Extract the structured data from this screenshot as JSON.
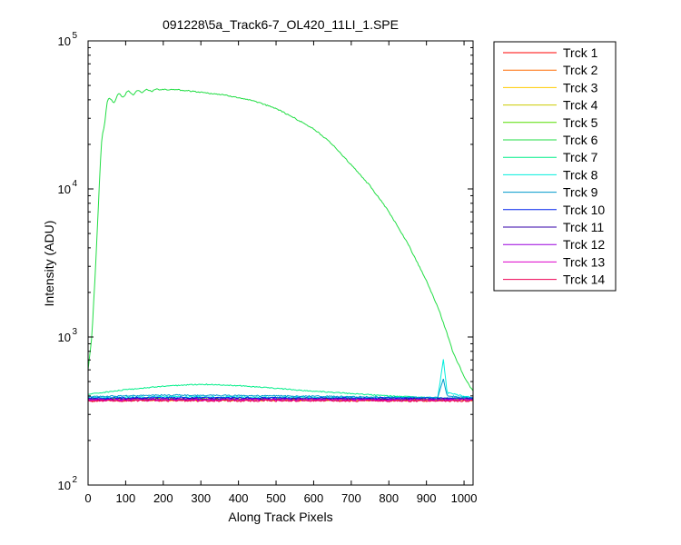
{
  "chart_data": {
    "type": "line",
    "title": "091228\\5a_Track6-7_OL420_11LI_1.SPE",
    "xlabel": "Along Track Pixels",
    "ylabel": "Intensity (ADU)",
    "xlim": [
      0,
      1024
    ],
    "ylim": [
      100,
      100000
    ],
    "yscale": "log",
    "grid": false,
    "legend_placement": "outside-right",
    "x_ticks": [
      0,
      100,
      200,
      300,
      400,
      500,
      600,
      700,
      800,
      900,
      1000
    ],
    "x_tick_labels": [
      "0",
      "100",
      "200",
      "300",
      "400",
      "500",
      "600",
      "700",
      "800",
      "900",
      "1000"
    ],
    "y_ticks": [
      100,
      1000,
      10000,
      100000
    ],
    "y_tick_labels": [
      {
        "base": "10",
        "exp": "2"
      },
      {
        "base": "10",
        "exp": "3"
      },
      {
        "base": "10",
        "exp": "4"
      },
      {
        "base": "10",
        "exp": "5"
      }
    ],
    "series": [
      {
        "name": "Trck 1",
        "color": "#ff0000",
        "noise": 0.015,
        "points": [
          [
            0,
            375
          ],
          [
            200,
            378
          ],
          [
            400,
            377
          ],
          [
            600,
            378
          ],
          [
            800,
            376
          ],
          [
            1024,
            377
          ]
        ]
      },
      {
        "name": "Trck 2",
        "color": "#ff6a00",
        "noise": 0.015,
        "points": [
          [
            0,
            378
          ],
          [
            200,
            380
          ],
          [
            400,
            379
          ],
          [
            600,
            380
          ],
          [
            800,
            378
          ],
          [
            1024,
            379
          ]
        ]
      },
      {
        "name": "Trck 3",
        "color": "#ffcc00",
        "noise": 0.015,
        "points": [
          [
            0,
            372
          ],
          [
            200,
            374
          ],
          [
            400,
            373
          ],
          [
            600,
            374
          ],
          [
            800,
            372
          ],
          [
            1024,
            373
          ]
        ]
      },
      {
        "name": "Trck 4",
        "color": "#cccc00",
        "noise": 0.015,
        "points": [
          [
            0,
            374
          ],
          [
            200,
            376
          ],
          [
            400,
            375
          ],
          [
            600,
            376
          ],
          [
            800,
            374
          ],
          [
            1024,
            375
          ]
        ]
      },
      {
        "name": "Trck 5",
        "color": "#55dd00",
        "noise": 0.01,
        "points": [
          [
            0,
            382
          ],
          [
            200,
            384
          ],
          [
            400,
            383
          ],
          [
            600,
            384
          ],
          [
            800,
            382
          ],
          [
            1024,
            383
          ]
        ]
      },
      {
        "name": "Trck 6",
        "color": "#22dd44",
        "noise": 0.01,
        "points": [
          [
            0,
            600
          ],
          [
            10,
            1000
          ],
          [
            20,
            3000
          ],
          [
            35,
            20000
          ],
          [
            50,
            38000
          ],
          [
            80,
            42000
          ],
          [
            100,
            44000
          ],
          [
            150,
            46000
          ],
          [
            200,
            47000
          ],
          [
            250,
            46500
          ],
          [
            300,
            45000
          ],
          [
            350,
            43500
          ],
          [
            400,
            41500
          ],
          [
            450,
            38500
          ],
          [
            500,
            35000
          ],
          [
            550,
            30000
          ],
          [
            600,
            25500
          ],
          [
            650,
            20000
          ],
          [
            700,
            14500
          ],
          [
            750,
            10500
          ],
          [
            800,
            7000
          ],
          [
            850,
            4300
          ],
          [
            900,
            2400
          ],
          [
            930,
            1600
          ],
          [
            950,
            1150
          ],
          [
            970,
            800
          ],
          [
            1000,
            540
          ],
          [
            1024,
            430
          ]
        ]
      },
      {
        "name": "Trck 7",
        "color": "#00ee88",
        "noise": 0.008,
        "points": [
          [
            0,
            410
          ],
          [
            100,
            440
          ],
          [
            200,
            465
          ],
          [
            300,
            480
          ],
          [
            400,
            470
          ],
          [
            500,
            450
          ],
          [
            600,
            430
          ],
          [
            700,
            415
          ],
          [
            800,
            400
          ],
          [
            900,
            390
          ],
          [
            1024,
            385
          ]
        ]
      },
      {
        "name": "Trck 8",
        "color": "#00eedd",
        "noise": 0.01,
        "points": [
          [
            0,
            390
          ],
          [
            200,
            395
          ],
          [
            400,
            393
          ],
          [
            600,
            392
          ],
          [
            800,
            390
          ],
          [
            930,
            390
          ],
          [
            945,
            700
          ],
          [
            955,
            420
          ],
          [
            1024,
            388
          ]
        ]
      },
      {
        "name": "Trck 9",
        "color": "#0099cc",
        "noise": 0.01,
        "points": [
          [
            0,
            395
          ],
          [
            200,
            405
          ],
          [
            400,
            402
          ],
          [
            600,
            398
          ],
          [
            800,
            392
          ],
          [
            930,
            390
          ],
          [
            945,
            520
          ],
          [
            955,
            400
          ],
          [
            1024,
            388
          ]
        ]
      },
      {
        "name": "Trck 10",
        "color": "#0022ee",
        "noise": 0.012,
        "points": [
          [
            0,
            385
          ],
          [
            200,
            390
          ],
          [
            400,
            388
          ],
          [
            600,
            387
          ],
          [
            800,
            386
          ],
          [
            1024,
            385
          ]
        ]
      },
      {
        "name": "Trck 11",
        "color": "#3300aa",
        "noise": 0.015,
        "points": [
          [
            0,
            380
          ],
          [
            200,
            382
          ],
          [
            400,
            381
          ],
          [
            600,
            382
          ],
          [
            800,
            380
          ],
          [
            1024,
            381
          ]
        ]
      },
      {
        "name": "Trck 12",
        "color": "#9900dd",
        "noise": 0.015,
        "points": [
          [
            0,
            377
          ],
          [
            200,
            379
          ],
          [
            400,
            378
          ],
          [
            600,
            379
          ],
          [
            800,
            377
          ],
          [
            1024,
            378
          ]
        ]
      },
      {
        "name": "Trck 13",
        "color": "#dd00cc",
        "noise": 0.015,
        "points": [
          [
            0,
            373
          ],
          [
            200,
            375
          ],
          [
            400,
            374
          ],
          [
            600,
            375
          ],
          [
            800,
            373
          ],
          [
            1024,
            374
          ]
        ]
      },
      {
        "name": "Trck 14",
        "color": "#ee0055",
        "noise": 0.015,
        "points": [
          [
            0,
            370
          ],
          [
            200,
            372
          ],
          [
            400,
            371
          ],
          [
            600,
            372
          ],
          [
            800,
            370
          ],
          [
            1024,
            371
          ]
        ]
      }
    ]
  }
}
